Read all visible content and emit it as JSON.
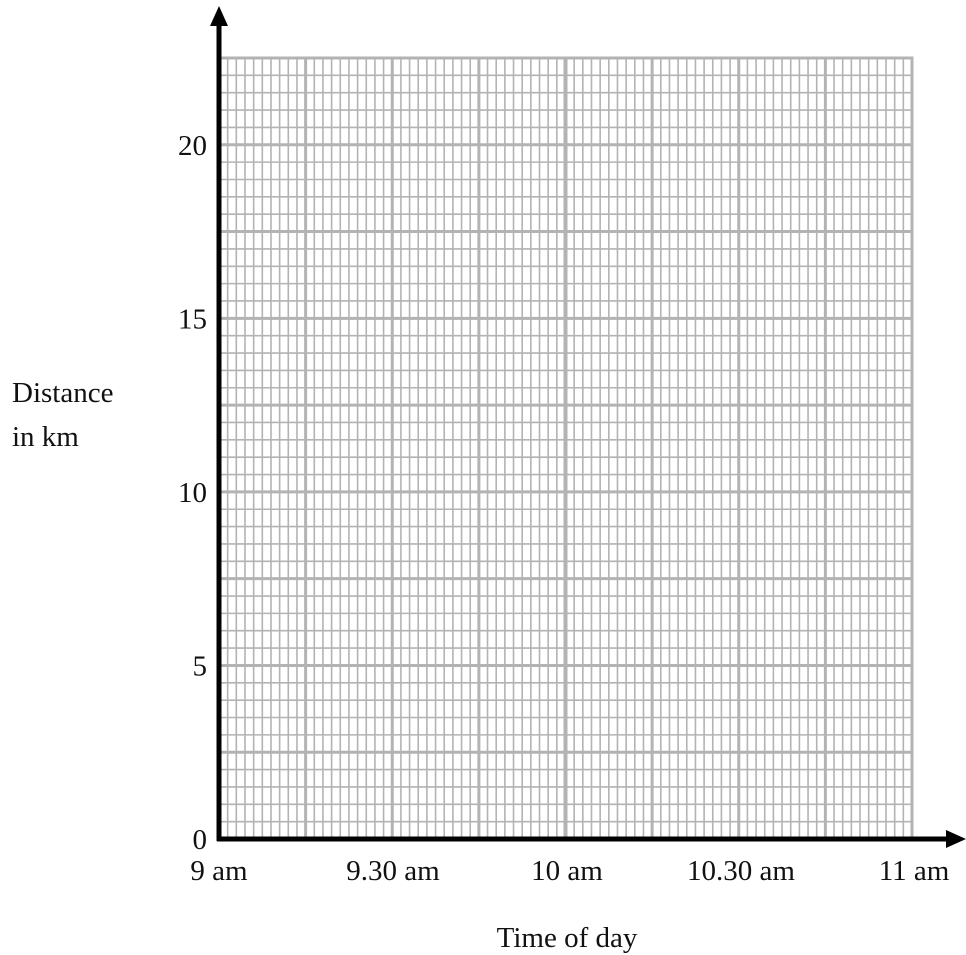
{
  "chart_data": {
    "type": "line",
    "title": "",
    "xlabel": "Time of day",
    "ylabel": [
      "Distance",
      "in km"
    ],
    "x_tick_labels": [
      "9 am",
      "9.30 am",
      "10 am",
      "10.30 am",
      "11 am"
    ],
    "y_tick_labels": [
      "0",
      "5",
      "10",
      "15",
      "20"
    ],
    "y_ticks": [
      0,
      5,
      10,
      15,
      20
    ],
    "xlim": [
      "9 am",
      "11 am"
    ],
    "ylim": [
      0,
      22.5
    ],
    "grid": true,
    "grid_major_x_minutes": 15,
    "grid_minor_x_minutes": 1.5,
    "grid_major_y_km": 2.5,
    "grid_minor_y_km": 0.5,
    "series": []
  },
  "colors": {
    "axis": "#000000",
    "grid": "#b3b3b3",
    "background": "#ffffff"
  }
}
